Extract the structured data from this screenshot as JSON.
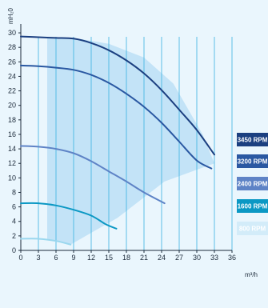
{
  "chart_data": {
    "type": "line",
    "xlabel": "m³/h",
    "ylabel": "mH₂0",
    "xlim": [
      0,
      36
    ],
    "ylim": [
      0,
      31
    ],
    "xticks": [
      0,
      3,
      6,
      9,
      12,
      15,
      18,
      21,
      24,
      27,
      30,
      33,
      36
    ],
    "yticks": [
      0,
      2,
      4,
      6,
      8,
      10,
      12,
      14,
      16,
      18,
      20,
      22,
      24,
      26,
      28,
      30
    ],
    "grid": "vertical",
    "legend_placement": "right",
    "operating_area": [
      [
        4.5,
        29.4
      ],
      [
        4.5,
        1.5
      ],
      [
        8.5,
        0.8
      ],
      [
        16.5,
        4.5
      ],
      [
        24.5,
        9.5
      ],
      [
        33,
        12
      ],
      [
        31,
        16
      ],
      [
        26,
        23
      ],
      [
        21,
        26.6
      ],
      [
        15,
        28.5
      ],
      [
        9,
        29.3
      ]
    ],
    "series": [
      {
        "name": "3450 RPM",
        "color": "#1b3f80",
        "points": [
          [
            0,
            29.5
          ],
          [
            3,
            29.4
          ],
          [
            6,
            29.3
          ],
          [
            9,
            29.2
          ],
          [
            12,
            28.6
          ],
          [
            15,
            27.6
          ],
          [
            18,
            26.2
          ],
          [
            21,
            24.4
          ],
          [
            24,
            22.1
          ],
          [
            27,
            19.4
          ],
          [
            30,
            16.6
          ],
          [
            33,
            13.2
          ]
        ]
      },
      {
        "name": "3200 RPM",
        "color": "#2a58a2",
        "points": [
          [
            0,
            25.5
          ],
          [
            3,
            25.4
          ],
          [
            6,
            25.2
          ],
          [
            9,
            24.9
          ],
          [
            12,
            24.2
          ],
          [
            15,
            23.1
          ],
          [
            18,
            21.6
          ],
          [
            21,
            19.8
          ],
          [
            24,
            17.6
          ],
          [
            27,
            15.0
          ],
          [
            30,
            12.4
          ],
          [
            32.5,
            11.3
          ]
        ]
      },
      {
        "name": "2400 RPM",
        "color": "#5e83c6",
        "points": [
          [
            0,
            14.4
          ],
          [
            3,
            14.3
          ],
          [
            6,
            14.0
          ],
          [
            9,
            13.4
          ],
          [
            12,
            12.3
          ],
          [
            15,
            10.9
          ],
          [
            18,
            9.5
          ],
          [
            21,
            8.0
          ],
          [
            24.5,
            6.5
          ]
        ]
      },
      {
        "name": "1600 RPM",
        "color": "#0b98c4",
        "points": [
          [
            0,
            6.5
          ],
          [
            3,
            6.5
          ],
          [
            6,
            6.2
          ],
          [
            9,
            5.6
          ],
          [
            12,
            4.8
          ],
          [
            14.5,
            3.6
          ],
          [
            16.3,
            3.0
          ]
        ]
      },
      {
        "name": "800 RPM",
        "color": "#9ad7ee",
        "points": [
          [
            0,
            1.6
          ],
          [
            3,
            1.6
          ],
          [
            6,
            1.3
          ],
          [
            8.5,
            0.8
          ]
        ]
      }
    ]
  }
}
